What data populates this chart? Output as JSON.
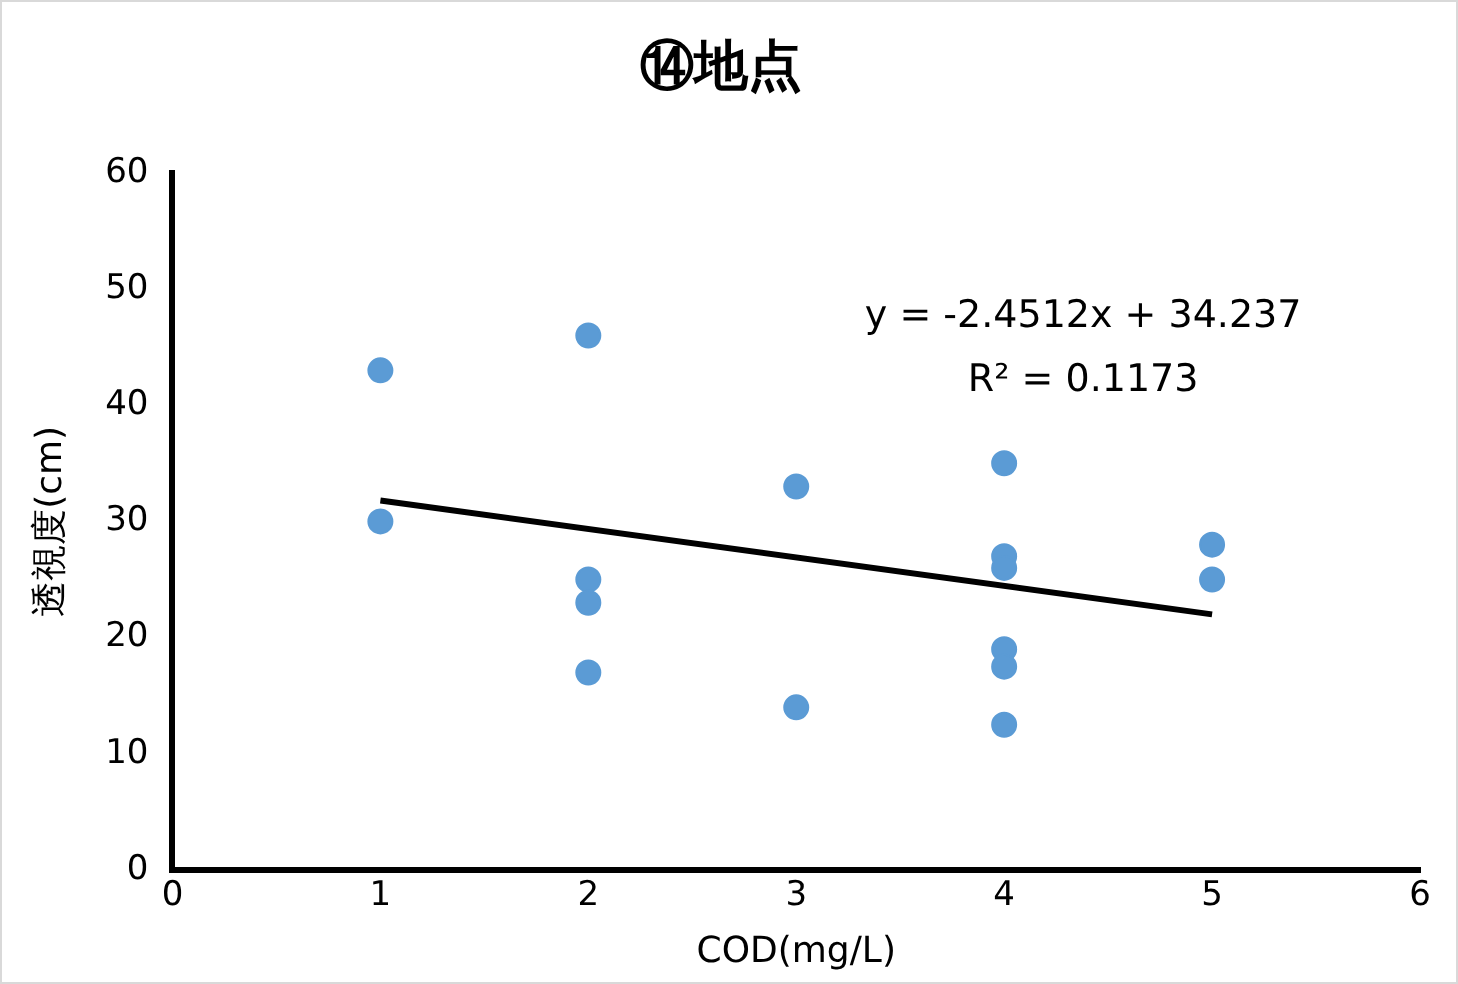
{
  "chart_data": {
    "type": "scatter",
    "title": "⑭地点",
    "xlabel": "COD(mg/L)",
    "ylabel": "透視度(cm)",
    "x": [
      1,
      1,
      2,
      2,
      2,
      2,
      3,
      3,
      4,
      4,
      4,
      4,
      4,
      4,
      5,
      5
    ],
    "series": [
      {
        "color": "#5b9bd5",
        "marker": "circle",
        "values": [
          43,
          30,
          46,
          25,
          23,
          17,
          33,
          14,
          35,
          27,
          26,
          19,
          17.5,
          12.5,
          28,
          25
        ]
      },
      {
        "type": "line",
        "color": "#000000",
        "marker": "none",
        "line_style": "solid",
        "x": [
          1,
          5
        ],
        "values": [
          31.8,
          22.0
        ]
      }
    ],
    "xlim": [
      0,
      6
    ],
    "xticks": [
      0,
      1,
      2,
      3,
      4,
      5,
      6
    ],
    "ylim": [
      0,
      60
    ],
    "yticks": [
      0,
      10,
      20,
      30,
      40,
      50,
      60
    ],
    "grid": false,
    "legend": false,
    "annotations": [
      "y = -2.4512x + 34.237",
      "R² = 0.1173"
    ]
  }
}
